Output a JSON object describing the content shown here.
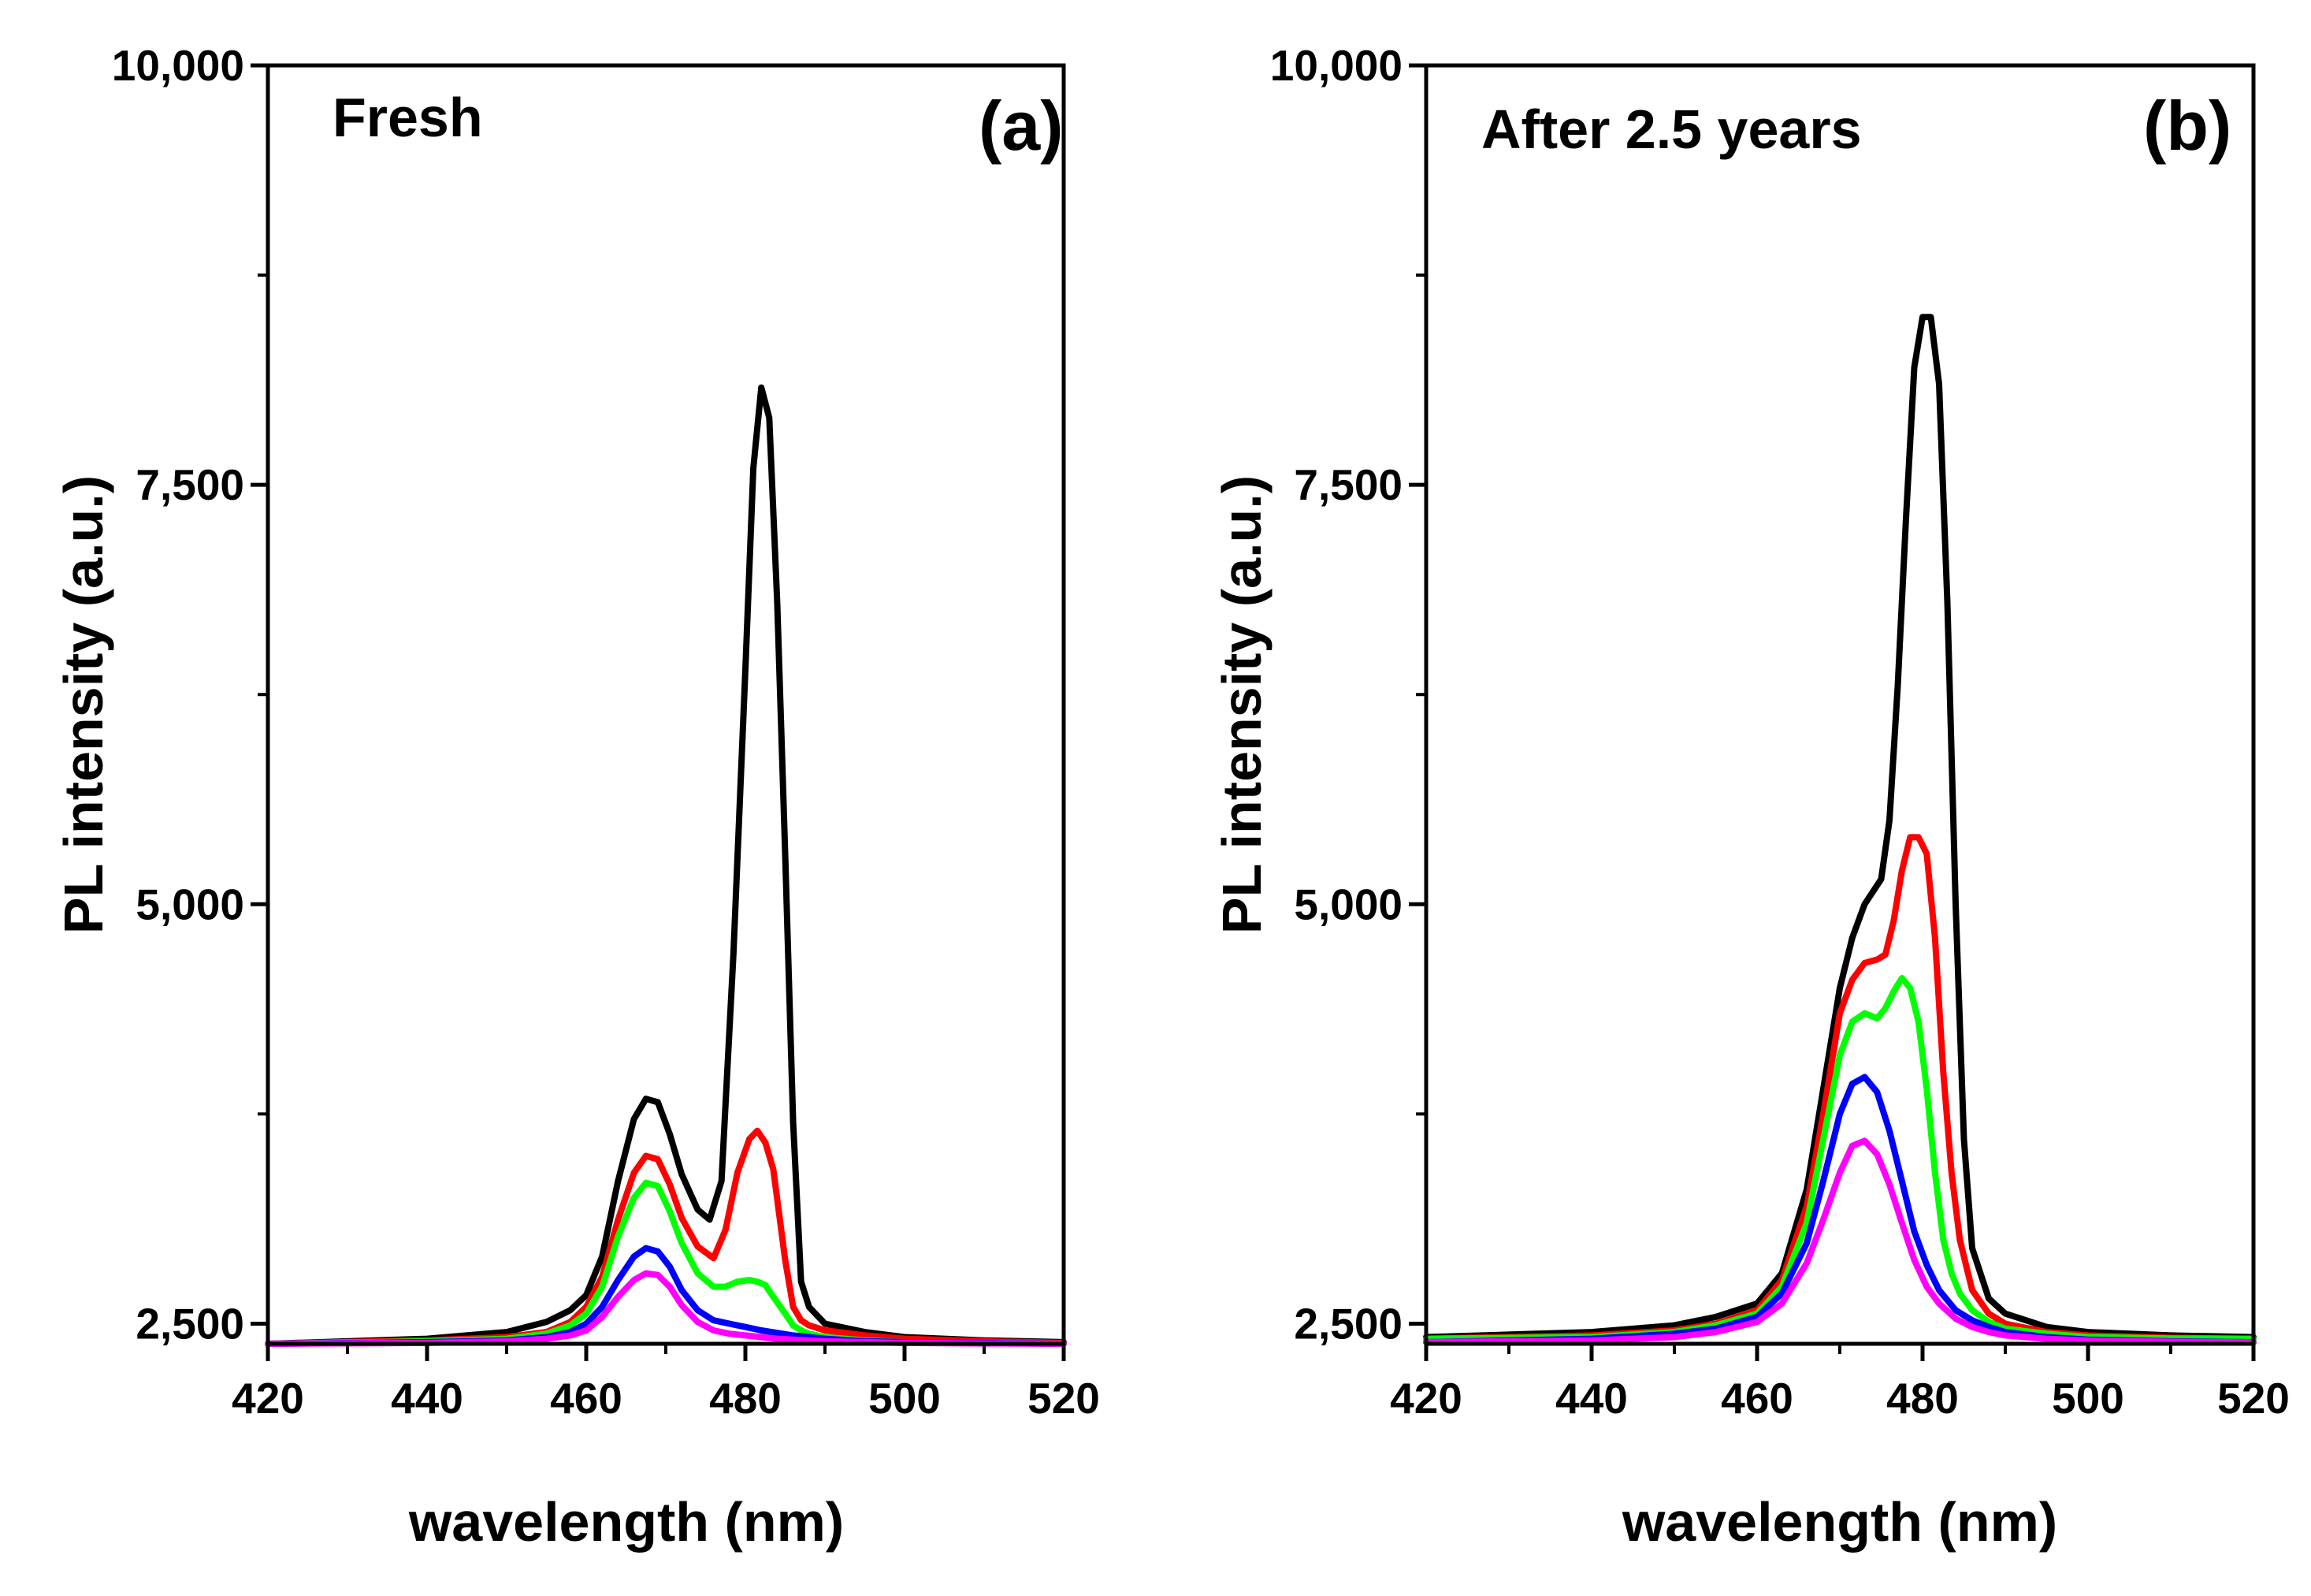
{
  "chart_data": [
    {
      "type": "line",
      "panel_label": "(a)",
      "annotation": "Fresh",
      "xlabel": "wavelength (nm)",
      "ylabel": "PL intensity (a.u.)",
      "xlim": [
        420,
        520
      ],
      "ylim": [
        2380,
        10000
      ],
      "xticks": [
        420,
        440,
        460,
        480,
        500,
        520
      ],
      "xtick_labels": [
        "420",
        "440",
        "460",
        "480",
        "500",
        "520"
      ],
      "yticks": [
        2500,
        5000,
        7500,
        10000
      ],
      "ytick_labels": [
        "2,500",
        "5,000",
        "7,500",
        "10,000"
      ],
      "grid": false,
      "series": [
        {
          "name": "black",
          "color": "#000000",
          "x": [
            420,
            440,
            450,
            455,
            458,
            460,
            462,
            464,
            466,
            467.5,
            469,
            470.5,
            472,
            474,
            475.5,
            477,
            478.5,
            480,
            481,
            482,
            483,
            484,
            485,
            486,
            487,
            488,
            490,
            495,
            500,
            510,
            520
          ],
          "y": [
            2380,
            2410,
            2450,
            2510,
            2580,
            2670,
            2900,
            3350,
            3720,
            3840,
            3820,
            3630,
            3390,
            3180,
            3120,
            3350,
            4700,
            6400,
            7600,
            8080,
            7900,
            6800,
            5300,
            3700,
            2750,
            2600,
            2500,
            2450,
            2420,
            2400,
            2390
          ]
        },
        {
          "name": "red",
          "color": "#ff0000",
          "x": [
            420,
            440,
            450,
            455,
            458,
            460,
            462,
            464,
            466,
            467.5,
            469,
            470.5,
            472,
            474,
            476,
            477.5,
            479,
            480.5,
            481.5,
            482.5,
            483.5,
            485,
            486,
            487,
            488,
            490,
            495,
            500,
            510,
            520
          ],
          "y": [
            2380,
            2400,
            2420,
            2450,
            2510,
            2600,
            2780,
            3120,
            3400,
            3500,
            3480,
            3330,
            3130,
            2960,
            2890,
            3060,
            3400,
            3600,
            3650,
            3580,
            3420,
            2880,
            2600,
            2520,
            2490,
            2460,
            2430,
            2410,
            2395,
            2385
          ]
        },
        {
          "name": "green",
          "color": "#00ff00",
          "x": [
            420,
            440,
            450,
            455,
            458,
            460,
            462,
            464,
            466,
            467.5,
            469,
            470.5,
            472,
            474,
            476,
            477.5,
            479,
            480.5,
            481.5,
            482.5,
            483.5,
            485,
            486,
            487,
            488,
            490,
            495,
            500,
            510,
            520
          ],
          "y": [
            2380,
            2395,
            2410,
            2440,
            2490,
            2560,
            2720,
            3020,
            3250,
            3340,
            3320,
            3170,
            2980,
            2800,
            2720,
            2720,
            2750,
            2760,
            2750,
            2730,
            2660,
            2560,
            2490,
            2460,
            2440,
            2420,
            2400,
            2390,
            2385,
            2380
          ]
        },
        {
          "name": "blue",
          "color": "#0000ff",
          "x": [
            420,
            440,
            450,
            455,
            458,
            460,
            462,
            464,
            466,
            467.5,
            469,
            470.5,
            472,
            474,
            476,
            478,
            480,
            482,
            484,
            486,
            488,
            490,
            495,
            500,
            510,
            520
          ],
          "y": [
            2380,
            2390,
            2400,
            2420,
            2450,
            2500,
            2600,
            2760,
            2900,
            2950,
            2930,
            2840,
            2700,
            2580,
            2520,
            2500,
            2480,
            2460,
            2445,
            2430,
            2420,
            2410,
            2395,
            2390,
            2385,
            2380
          ]
        },
        {
          "name": "magenta",
          "color": "#ff00ff",
          "x": [
            420,
            440,
            450,
            455,
            458,
            460,
            462,
            464,
            466,
            467.5,
            469,
            470.5,
            472,
            474,
            476,
            478,
            480,
            482,
            484,
            486,
            488,
            490,
            495,
            500,
            510,
            520
          ],
          "y": [
            2380,
            2385,
            2395,
            2410,
            2430,
            2460,
            2540,
            2660,
            2760,
            2800,
            2790,
            2720,
            2610,
            2510,
            2460,
            2440,
            2430,
            2420,
            2410,
            2405,
            2400,
            2395,
            2390,
            2385,
            2382,
            2380
          ]
        }
      ]
    },
    {
      "type": "line",
      "panel_label": "(b)",
      "annotation": "After 2.5 years",
      "xlabel": "wavelength (nm)",
      "ylabel": "PL intensity (a.u.)",
      "xlim": [
        420,
        520
      ],
      "ylim": [
        2380,
        10000
      ],
      "xticks": [
        420,
        440,
        460,
        480,
        500,
        520
      ],
      "xtick_labels": [
        "420",
        "440",
        "460",
        "480",
        "500",
        "520"
      ],
      "yticks": [
        2500,
        5000,
        7500,
        10000
      ],
      "ytick_labels": [
        "2,500",
        "5,000",
        "7,500",
        "10,000"
      ],
      "grid": false,
      "series": [
        {
          "name": "black",
          "color": "#000000",
          "x": [
            420,
            440,
            450,
            455,
            460,
            463,
            466,
            468,
            470,
            471.5,
            473,
            475,
            476,
            477,
            478,
            479,
            480,
            481,
            482,
            483,
            484,
            485,
            486,
            488,
            490,
            495,
            500,
            510,
            520
          ],
          "y": [
            2420,
            2450,
            2490,
            2540,
            2620,
            2800,
            3300,
            3900,
            4500,
            4800,
            5000,
            5150,
            5500,
            6300,
            7300,
            8200,
            8500,
            8500,
            8100,
            6800,
            5000,
            3600,
            2950,
            2650,
            2560,
            2480,
            2450,
            2430,
            2420
          ]
        },
        {
          "name": "red",
          "color": "#ff0000",
          "x": [
            420,
            440,
            450,
            455,
            460,
            463,
            466,
            468,
            470,
            471.5,
            473,
            474.5,
            475.5,
            476.5,
            477.5,
            478.5,
            479.5,
            480.5,
            481.5,
            482.5,
            483.5,
            484.5,
            486,
            488,
            490,
            495,
            500,
            510,
            520
          ],
          "y": [
            2410,
            2430,
            2460,
            2500,
            2580,
            2760,
            3200,
            3750,
            4350,
            4550,
            4650,
            4670,
            4700,
            4900,
            5200,
            5400,
            5400,
            5300,
            4800,
            4000,
            3400,
            3000,
            2700,
            2560,
            2500,
            2450,
            2430,
            2415,
            2410
          ]
        },
        {
          "name": "green",
          "color": "#00ff00",
          "x": [
            420,
            440,
            450,
            455,
            460,
            463,
            466,
            468,
            470,
            471.5,
            473,
            474.5,
            475.5,
            476.5,
            477.5,
            478.5,
            479.5,
            480.5,
            481.5,
            482.5,
            483.5,
            484.5,
            486,
            488,
            490,
            495,
            500,
            510,
            520
          ],
          "y": [
            2410,
            2420,
            2450,
            2490,
            2560,
            2720,
            3100,
            3600,
            4100,
            4300,
            4350,
            4320,
            4380,
            4480,
            4560,
            4500,
            4300,
            3900,
            3400,
            3000,
            2800,
            2680,
            2580,
            2510,
            2470,
            2440,
            2420,
            2412,
            2410
          ]
        },
        {
          "name": "blue",
          "color": "#0000ff",
          "x": [
            420,
            440,
            450,
            455,
            460,
            463,
            466,
            468,
            470,
            471.5,
            473,
            474.5,
            476,
            477.5,
            479,
            480.5,
            482,
            484,
            486,
            488,
            490,
            495,
            500,
            510,
            520
          ],
          "y": [
            2390,
            2410,
            2440,
            2470,
            2540,
            2680,
            2980,
            3350,
            3750,
            3930,
            3970,
            3880,
            3650,
            3350,
            3050,
            2850,
            2700,
            2580,
            2520,
            2480,
            2450,
            2420,
            2405,
            2395,
            2390
          ]
        },
        {
          "name": "magenta",
          "color": "#ff00ff",
          "x": [
            420,
            440,
            450,
            455,
            460,
            463,
            466,
            468,
            470,
            471.5,
            473,
            474.5,
            476,
            477.5,
            479,
            480.5,
            482,
            484,
            486,
            488,
            490,
            495,
            500,
            510,
            520
          ],
          "y": [
            2390,
            2400,
            2420,
            2450,
            2510,
            2620,
            2860,
            3120,
            3400,
            3560,
            3590,
            3510,
            3330,
            3100,
            2880,
            2720,
            2620,
            2530,
            2480,
            2450,
            2430,
            2410,
            2400,
            2392,
            2388
          ]
        }
      ]
    }
  ]
}
